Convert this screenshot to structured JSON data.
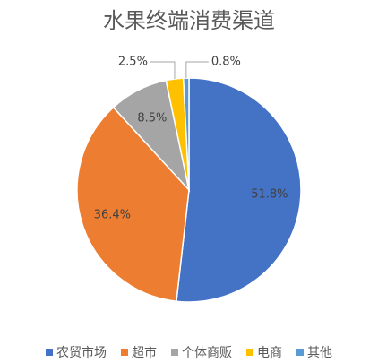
{
  "chart_data": {
    "type": "pie",
    "title": "水果终端消费渠道",
    "categories": [
      "农贸市场",
      "超市",
      "个体商贩",
      "电商",
      "其他"
    ],
    "values": [
      51.8,
      36.4,
      8.5,
      2.5,
      0.8
    ],
    "value_labels": [
      "51.8%",
      "36.4%",
      "8.5%",
      "2.5%",
      "0.8%"
    ],
    "colors": [
      "#4472c4",
      "#ed7d31",
      "#a5a5a5",
      "#ffc000",
      "#5b9bd5"
    ],
    "legend": "bottom"
  }
}
